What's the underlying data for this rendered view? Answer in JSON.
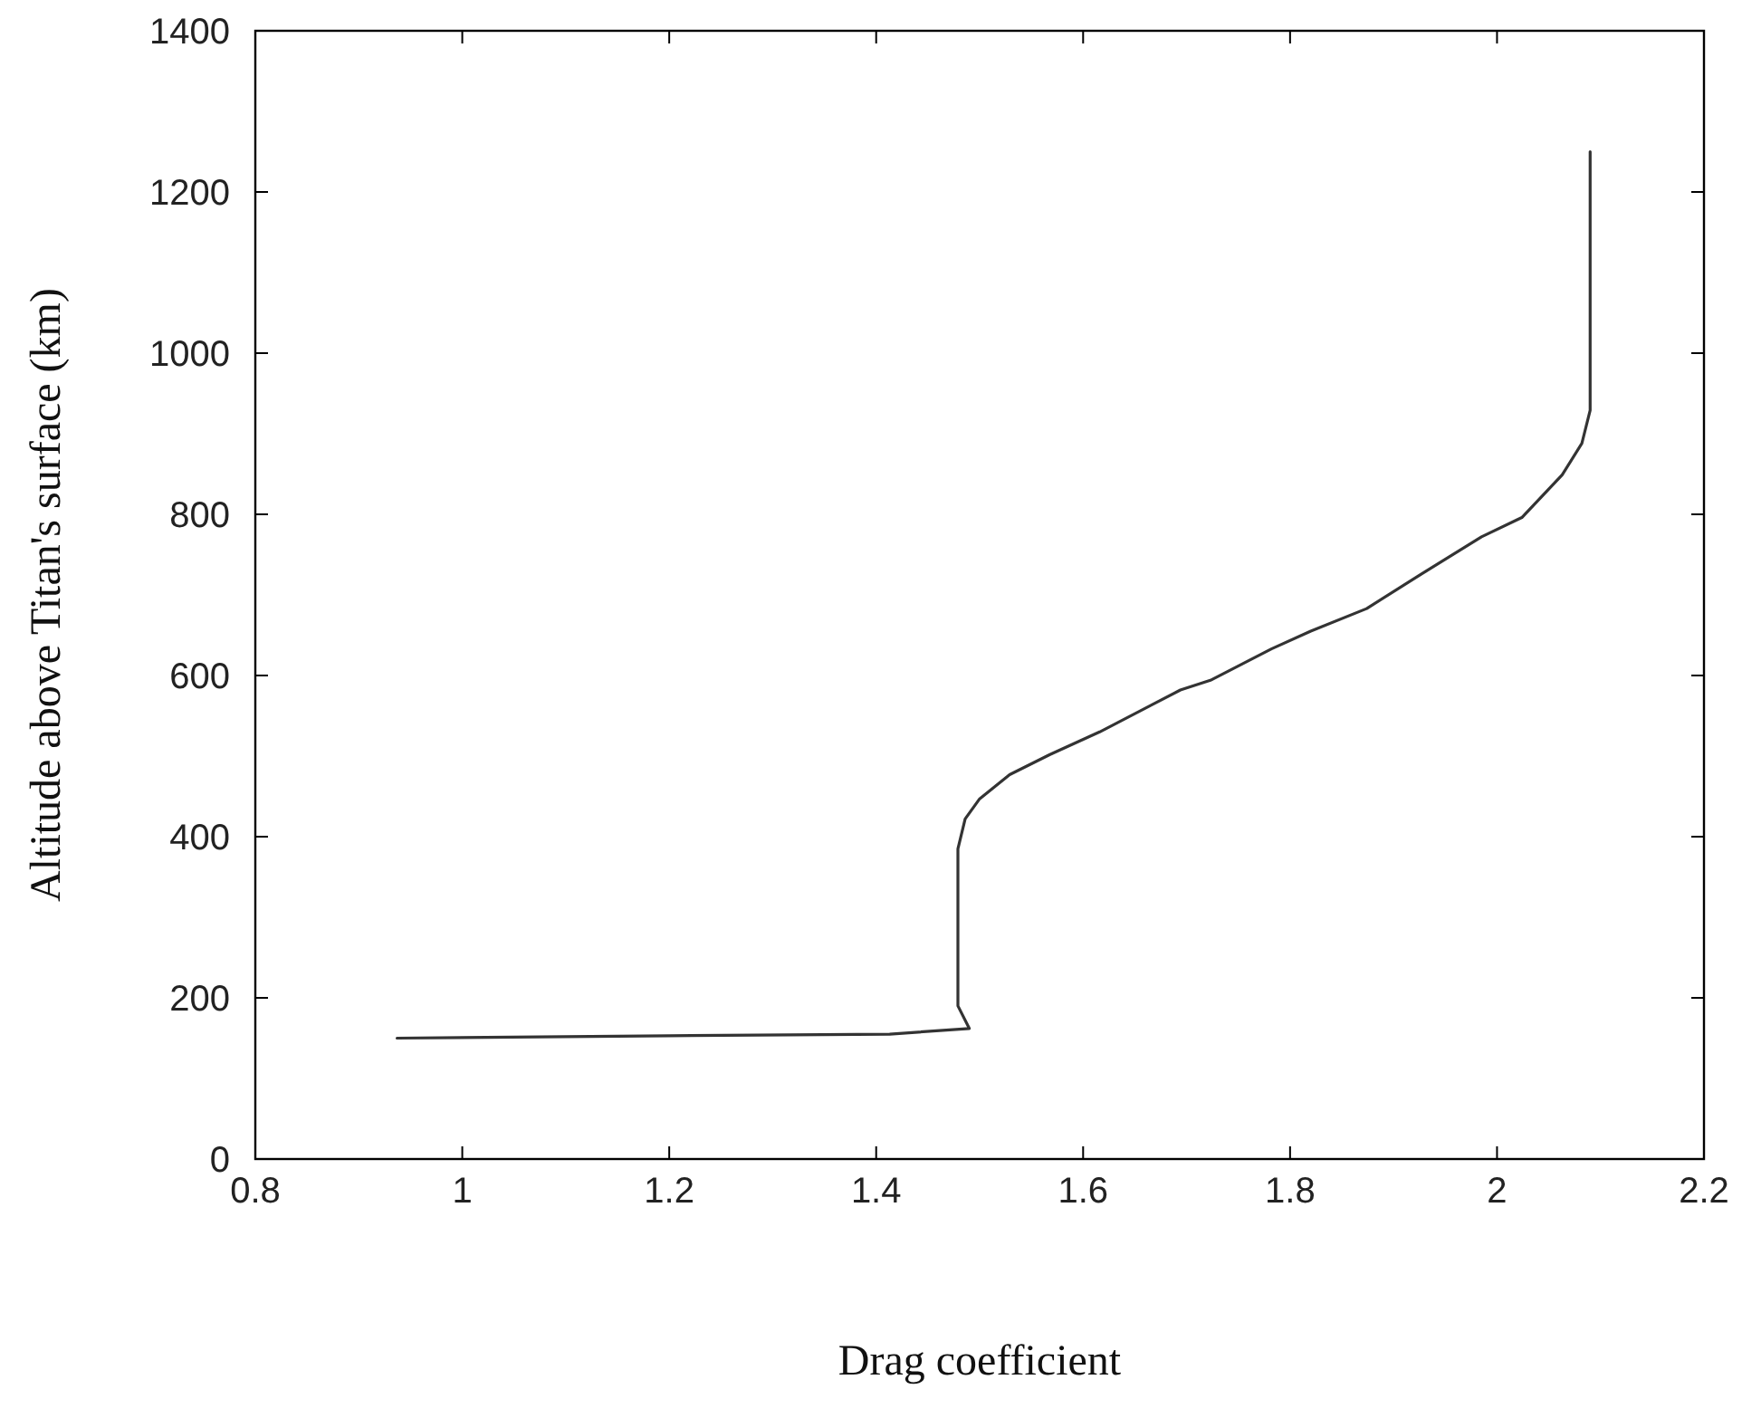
{
  "chart_data": {
    "type": "line",
    "xlabel": "Drag coefficient",
    "ylabel": "Altitude above Titan's surface (km)",
    "xlim": [
      0.8,
      2.2
    ],
    "xticks": [
      0.8,
      1,
      1.2,
      1.4,
      1.6,
      1.8,
      2,
      2.2
    ],
    "ylim": [
      0,
      1400
    ],
    "yticks": [
      0,
      200,
      400,
      600,
      800,
      1000,
      1200,
      1400
    ],
    "grid": false,
    "marker": "none",
    "line_style": "solid",
    "series": [
      {
        "color": "#333333",
        "x": [
          0.937,
          1.2,
          1.413,
          1.49,
          1.479,
          1.479,
          1.486,
          1.5,
          1.529,
          1.568,
          1.616,
          1.694,
          1.723,
          1.782,
          1.82,
          1.874,
          1.927,
          1.985,
          2.024,
          2.063,
          2.082,
          2.09,
          2.09
        ],
        "values": [
          150,
          153,
          155,
          162,
          190,
          385,
          422,
          447,
          477,
          502,
          530,
          582,
          594,
          633,
          655,
          683,
          726,
          772,
          796,
          849,
          888,
          929,
          1250
        ]
      }
    ]
  }
}
